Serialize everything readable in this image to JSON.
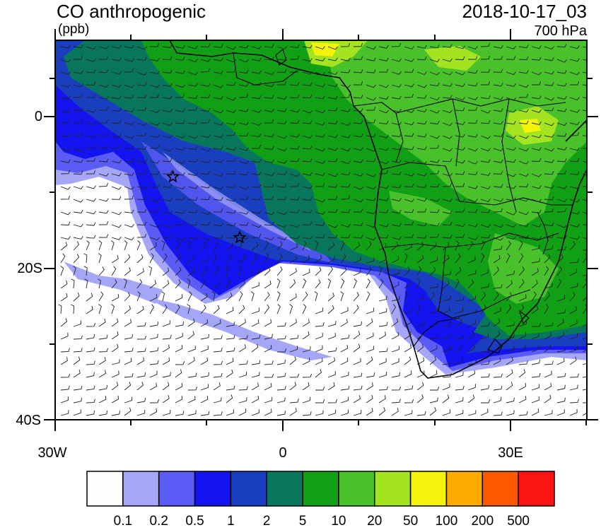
{
  "map": {
    "title": "CO anthropogenic",
    "units": "(ppb)",
    "datetime": "2018-10-17_03",
    "level": "700 hPa",
    "lat_ticks": [
      "0",
      "20S",
      "40S"
    ],
    "lon_ticks": [
      "30W",
      "0",
      "30E"
    ],
    "extent": {
      "lon_min": -30,
      "lon_max": 40,
      "lat_min": -40,
      "lat_max": 10
    },
    "markers": [
      {
        "name": "star-1",
        "lon": -14.5,
        "lat": -8
      },
      {
        "name": "star-2",
        "lon": -5.7,
        "lat": -16
      }
    ]
  },
  "colorbar": {
    "labels": [
      "0.1",
      "0.2",
      "0.5",
      "1",
      "2",
      "5",
      "10",
      "20",
      "50",
      "100",
      "200",
      "500"
    ],
    "colors": [
      "#fdfdfd",
      "#a6a6f8",
      "#5b5bf5",
      "#1414f0",
      "#1a3ec0",
      "#08765c",
      "#11a015",
      "#49c12a",
      "#a3e31f",
      "#f3f30b",
      "#feaa00",
      "#fd5a00",
      "#fc1414"
    ]
  }
}
